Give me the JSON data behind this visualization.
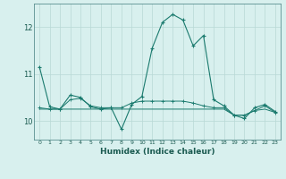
{
  "xlabel": "Humidex (Indice chaleur)",
  "x_values": [
    0,
    1,
    2,
    3,
    4,
    5,
    6,
    7,
    8,
    9,
    10,
    11,
    12,
    13,
    14,
    15,
    16,
    17,
    18,
    19,
    20,
    21,
    22,
    23
  ],
  "line1_y": [
    11.15,
    10.3,
    10.25,
    10.55,
    10.5,
    10.3,
    10.25,
    10.28,
    9.82,
    10.35,
    10.52,
    11.55,
    12.1,
    12.27,
    12.15,
    11.6,
    11.82,
    10.45,
    10.32,
    10.12,
    10.05,
    10.28,
    10.35,
    10.2
  ],
  "line2_y": [
    10.28,
    10.25,
    10.25,
    10.45,
    10.48,
    10.32,
    10.28,
    10.28,
    10.28,
    10.38,
    10.42,
    10.42,
    10.42,
    10.42,
    10.42,
    10.38,
    10.32,
    10.28,
    10.28,
    10.12,
    10.12,
    10.22,
    10.32,
    10.18
  ],
  "line3_y": [
    10.25,
    10.25,
    10.25,
    10.25,
    10.25,
    10.25,
    10.25,
    10.25,
    10.25,
    10.25,
    10.25,
    10.25,
    10.25,
    10.25,
    10.25,
    10.25,
    10.25,
    10.25,
    10.25,
    10.12,
    10.12,
    10.22,
    10.25,
    10.18
  ],
  "line_color": "#1a7a6e",
  "bg_color": "#d8f0ee",
  "grid_color": "#b8d8d5",
  "ylim": [
    9.6,
    12.5
  ],
  "yticks": [
    10,
    11,
    12
  ],
  "xticks": [
    0,
    1,
    2,
    3,
    4,
    5,
    6,
    7,
    8,
    9,
    10,
    11,
    12,
    13,
    14,
    15,
    16,
    17,
    18,
    19,
    20,
    21,
    22,
    23
  ]
}
